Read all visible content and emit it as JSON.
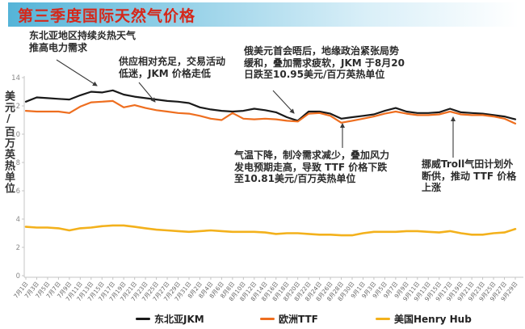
{
  "title": "第三季度国际天然气价格",
  "colors": {
    "title_text": "#d5281b",
    "header_blue": "#55b4d8",
    "header_blue_light": "#d9eff8",
    "annotation_text": "#2b2b2b",
    "axis_line": "#c4c4c4",
    "tick_text": "#8a8a8a",
    "arrow": "#3a3a3a"
  },
  "annotations": [
    {
      "id": "heat-demand",
      "lines": [
        "东北亚地区持续炎热天气",
        "推高电力需求"
      ]
    },
    {
      "id": "jkm-soft",
      "lines": [
        "供应相对充足，交易活动",
        "低迷，JKM 价格走低"
      ]
    },
    {
      "id": "jkm-aug20-low",
      "lines": [
        "俄美元首会晤后，地缘政治紧张局势",
        "缓和，叠加需求疲软，JKM 于8月20",
        "日跌至10.95美元/百万英热单位"
      ]
    },
    {
      "id": "ttf-low",
      "lines": [
        "气温下降，制冷需求减少，叠加风力",
        "发电预期走高，导致 TTF 价格下跌",
        "至10.81美元/百万英热单位"
      ]
    },
    {
      "id": "troll-outage",
      "lines": [
        "挪威Troll气田计划外",
        "断供，推动 TTF 价格",
        "上涨"
      ]
    }
  ],
  "legend": {
    "items": [
      {
        "label": "东北亚JKM",
        "color": "#1a1a1a"
      },
      {
        "label": "欧洲TTF",
        "color": "#ee6e1f"
      },
      {
        "label": "美国Henry Hub",
        "color": "#f3b11c"
      }
    ]
  },
  "chart_data": {
    "type": "line",
    "title": "第三季度国际天然气价格",
    "xlabel": "",
    "ylabel": "美元/百万英热单位",
    "ylim": [
      0,
      14
    ],
    "yticks": [
      0,
      2,
      4,
      6,
      8,
      10,
      12,
      14
    ],
    "grid": false,
    "legend_position": "bottom",
    "categories": [
      "7月1日",
      "7月3日",
      "7月5日",
      "7月7日",
      "7月9日",
      "7月11日",
      "7月13日",
      "7月15日",
      "7月17日",
      "7月19日",
      "7月21日",
      "7月23日",
      "7月25日",
      "7月27日",
      "7月29日",
      "7月31日",
      "8月2日",
      "8月4日",
      "8月6日",
      "8月8日",
      "8月10日",
      "8月12日",
      "8月14日",
      "8月16日",
      "8月18日",
      "8月20日",
      "8月22日",
      "8月24日",
      "8月26日",
      "8月28日",
      "8月30日",
      "9月1日",
      "9月3日",
      "9月5日",
      "9月7日",
      "9月9日",
      "9月11日",
      "9月13日",
      "9月15日",
      "9月17日",
      "9月19日",
      "9月21日",
      "9月23日",
      "9月25日",
      "9月27日",
      "9月29日"
    ],
    "series": [
      {
        "name": "东北亚JKM",
        "color": "#1a1a1a",
        "values": [
          12.3,
          12.6,
          12.55,
          12.5,
          12.45,
          12.75,
          13.0,
          12.95,
          13.1,
          12.8,
          12.65,
          12.55,
          12.45,
          12.35,
          12.3,
          12.2,
          11.9,
          11.75,
          11.65,
          11.6,
          11.65,
          11.8,
          11.7,
          11.55,
          11.2,
          10.95,
          11.6,
          11.6,
          11.45,
          11.1,
          11.2,
          11.3,
          11.4,
          11.65,
          11.85,
          11.6,
          11.5,
          11.5,
          11.55,
          11.8,
          11.55,
          11.5,
          11.45,
          11.35,
          11.25,
          11.05
        ]
      },
      {
        "name": "欧洲TTF",
        "color": "#ee6e1f",
        "values": [
          11.65,
          11.6,
          11.6,
          11.6,
          11.5,
          11.95,
          12.25,
          12.3,
          12.35,
          11.9,
          12.05,
          11.85,
          11.7,
          11.6,
          11.5,
          11.45,
          11.3,
          11.1,
          11.0,
          11.5,
          11.1,
          11.05,
          11.1,
          11.05,
          10.95,
          10.9,
          11.45,
          11.5,
          11.3,
          10.81,
          10.95,
          11.1,
          11.25,
          11.45,
          11.6,
          11.45,
          11.35,
          11.35,
          11.4,
          11.6,
          11.4,
          11.35,
          11.35,
          11.25,
          11.1,
          10.75
        ]
      },
      {
        "name": "美国Henry Hub",
        "color": "#f3b11c",
        "values": [
          3.45,
          3.4,
          3.4,
          3.35,
          3.2,
          3.35,
          3.4,
          3.5,
          3.55,
          3.55,
          3.45,
          3.35,
          3.25,
          3.2,
          3.15,
          3.1,
          3.15,
          3.2,
          3.15,
          3.1,
          3.1,
          3.1,
          3.05,
          2.95,
          3.0,
          3.0,
          2.95,
          2.9,
          2.9,
          2.85,
          2.85,
          3.0,
          3.1,
          3.1,
          3.1,
          3.15,
          3.15,
          3.1,
          3.05,
          3.15,
          3.0,
          2.9,
          2.9,
          3.0,
          3.05,
          3.3
        ]
      }
    ],
    "key_points": [
      {
        "series": "东北亚JKM",
        "date": "8月20日",
        "value": 10.95
      },
      {
        "series": "欧洲TTF",
        "date": "8月28日",
        "value": 10.81
      }
    ]
  }
}
